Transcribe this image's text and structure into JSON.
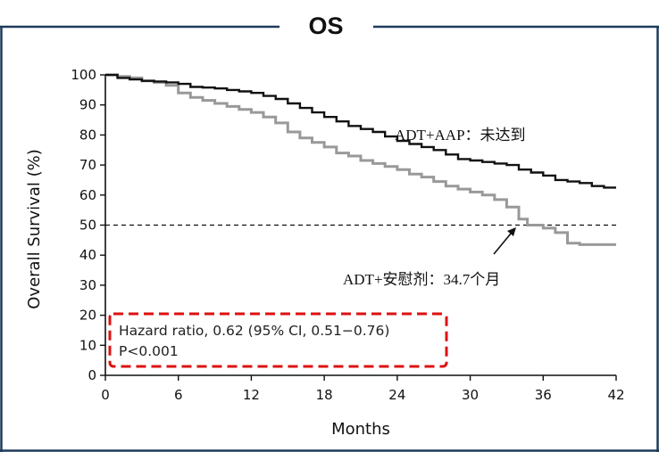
{
  "chart_data": {
    "type": "line",
    "title": "OS",
    "xlabel": "Months",
    "ylabel": "Overall Survival (%)",
    "xlim": [
      0,
      42
    ],
    "ylim": [
      0,
      100
    ],
    "xticks": [
      0,
      6,
      12,
      18,
      24,
      30,
      36,
      42
    ],
    "yticks": [
      0,
      10,
      20,
      30,
      40,
      50,
      60,
      70,
      80,
      90,
      100
    ],
    "grid": false,
    "reference_line": {
      "y": 50,
      "style": "dashed"
    },
    "series": [
      {
        "name": "ADT+AAP：未达到",
        "color": "#111111",
        "x": [
          0,
          1,
          2,
          3,
          4,
          5,
          6,
          7,
          8,
          9,
          10,
          11,
          12,
          13,
          14,
          15,
          16,
          17,
          18,
          19,
          20,
          21,
          22,
          23,
          24,
          25,
          26,
          27,
          28,
          29,
          30,
          31,
          32,
          33,
          34,
          35,
          36,
          37,
          38,
          39,
          40,
          41,
          42
        ],
        "y": [
          100,
          99,
          98.5,
          98,
          97.8,
          97.5,
          97,
          96,
          95.8,
          95.5,
          95,
          94.5,
          94,
          93,
          92,
          90.5,
          89,
          87.5,
          86,
          84.5,
          83,
          82,
          81,
          79.5,
          78,
          77,
          76,
          75,
          73.5,
          72,
          71.5,
          71,
          70.5,
          70,
          68.5,
          67.5,
          66.5,
          65,
          64.5,
          64,
          63,
          62.5,
          62.5
        ]
      },
      {
        "name": "ADT+安慰剂：34.7个月",
        "color": "#999999",
        "x": [
          0,
          1,
          2,
          3,
          4,
          5,
          6,
          7,
          8,
          9,
          10,
          11,
          12,
          13,
          14,
          15,
          16,
          17,
          18,
          19,
          20,
          21,
          22,
          23,
          24,
          25,
          26,
          27,
          28,
          29,
          30,
          31,
          32,
          33,
          34,
          34.7,
          35,
          36,
          37,
          38,
          39,
          40,
          41,
          42
        ],
        "y": [
          100,
          99.5,
          99,
          98,
          97.5,
          96.5,
          94,
          92.5,
          91.5,
          90.5,
          89.5,
          88.5,
          87.5,
          86,
          84,
          81,
          79,
          77.5,
          76,
          74,
          73,
          71.5,
          70.5,
          69.5,
          68.5,
          67,
          66,
          64.5,
          63,
          62,
          61,
          60,
          58.5,
          56,
          52,
          50,
          50,
          49,
          47.5,
          44,
          43.5,
          43.5,
          43.5,
          43.5
        ]
      }
    ],
    "annotations": [
      {
        "text": "Hazard ratio, 0.62 (95% CI, 0.51−0.76)"
      },
      {
        "text": "P<0.001"
      },
      {
        "text": "ADT+AAP：未达到"
      },
      {
        "text": "ADT+安慰剂：34.7个月"
      }
    ],
    "colors": {
      "frame": "#1f3b5a",
      "highlight_box": "#dd1111"
    }
  }
}
